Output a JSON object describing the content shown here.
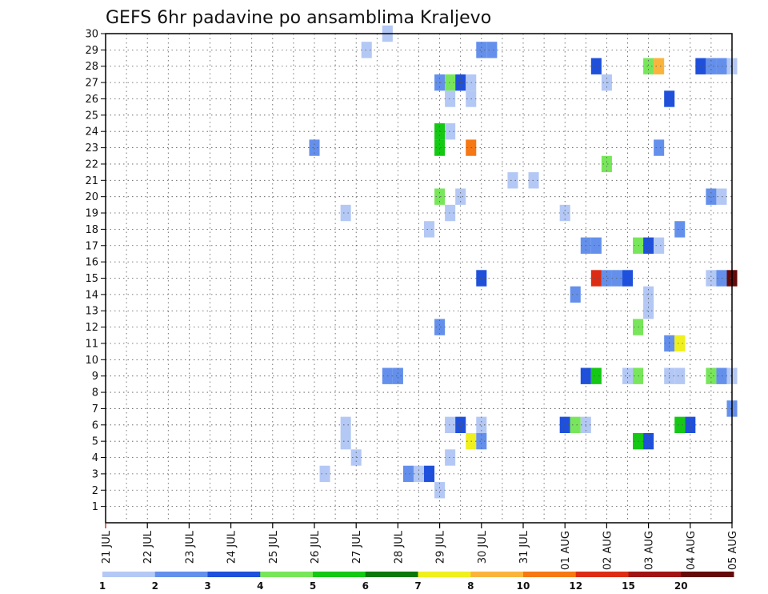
{
  "chart_data": {
    "type": "heatmap",
    "title": "GEFS 6hr padavine po ansamblima Kraljevo",
    "xlabel": "",
    "ylabel": "",
    "x_tick_labels": [
      "21 JUL",
      "22 JUL",
      "23 JUL",
      "24 JUL",
      "25 JUL",
      "26 JUL",
      "27 JUL",
      "28 JUL",
      "29 JUL",
      "30 JUL",
      "31 JUL",
      "01 AUG",
      "02 AUG",
      "03 AUG",
      "04 AUG",
      "05 AUG"
    ],
    "y_tick_labels": [
      "1",
      "2",
      "3",
      "4",
      "5",
      "6",
      "7",
      "8",
      "9",
      "10",
      "11",
      "12",
      "13",
      "14",
      "15",
      "16",
      "17",
      "18",
      "19",
      "20",
      "21",
      "22",
      "23",
      "24",
      "25",
      "26",
      "27",
      "28",
      "29",
      "30"
    ],
    "xlim_steps": [
      0,
      60
    ],
    "ylim": [
      0,
      30
    ],
    "grid": true,
    "colorbar": {
      "labels": [
        "1",
        "2",
        "3",
        "4",
        "5",
        "6",
        "7",
        "8",
        "10",
        "12",
        "15",
        "20"
      ],
      "colors": [
        "#b4c8f5",
        "#6490ec",
        "#1e50dc",
        "#78e65a",
        "#14c814",
        "#0a780a",
        "#f0f01e",
        "#fab43c",
        "#f57814",
        "#dc2d14",
        "#a01414",
        "#640a0a"
      ]
    },
    "points": [
      {
        "member": 30,
        "step": 27,
        "cls": 0
      },
      {
        "member": 29,
        "step": 25,
        "cls": 0
      },
      {
        "member": 29,
        "step": 36,
        "cls": 1
      },
      {
        "member": 29,
        "step": 37,
        "cls": 1
      },
      {
        "member": 28,
        "step": 47,
        "cls": 2
      },
      {
        "member": 28,
        "step": 52,
        "cls": 3
      },
      {
        "member": 28,
        "step": 53,
        "cls": 7
      },
      {
        "member": 28,
        "step": 57,
        "cls": 2
      },
      {
        "member": 28,
        "step": 58,
        "cls": 1
      },
      {
        "member": 28,
        "step": 59,
        "cls": 1
      },
      {
        "member": 28,
        "step": 60,
        "cls": 0
      },
      {
        "member": 27,
        "step": 32,
        "cls": 1
      },
      {
        "member": 27,
        "step": 33,
        "cls": 3
      },
      {
        "member": 27,
        "step": 34,
        "cls": 2
      },
      {
        "member": 27,
        "step": 35,
        "cls": 0
      },
      {
        "member": 27,
        "step": 48,
        "cls": 0
      },
      {
        "member": 26,
        "step": 33,
        "cls": 0
      },
      {
        "member": 26,
        "step": 35,
        "cls": 0
      },
      {
        "member": 26,
        "step": 54,
        "cls": 2
      },
      {
        "member": 24,
        "step": 32,
        "cls": 4
      },
      {
        "member": 24,
        "step": 33,
        "cls": 0
      },
      {
        "member": 23,
        "step": 20,
        "cls": 1
      },
      {
        "member": 23,
        "step": 32,
        "cls": 4
      },
      {
        "member": 23,
        "step": 35,
        "cls": 8
      },
      {
        "member": 23,
        "step": 53,
        "cls": 1
      },
      {
        "member": 22,
        "step": 48,
        "cls": 3
      },
      {
        "member": 21,
        "step": 39,
        "cls": 0
      },
      {
        "member": 21,
        "step": 41,
        "cls": 0
      },
      {
        "member": 20,
        "step": 32,
        "cls": 3
      },
      {
        "member": 20,
        "step": 34,
        "cls": 0
      },
      {
        "member": 20,
        "step": 58,
        "cls": 1
      },
      {
        "member": 20,
        "step": 59,
        "cls": 0
      },
      {
        "member": 19,
        "step": 23,
        "cls": 0
      },
      {
        "member": 19,
        "step": 33,
        "cls": 0
      },
      {
        "member": 19,
        "step": 44,
        "cls": 0
      },
      {
        "member": 18,
        "step": 31,
        "cls": 0
      },
      {
        "member": 18,
        "step": 55,
        "cls": 1
      },
      {
        "member": 17,
        "step": 46,
        "cls": 1
      },
      {
        "member": 17,
        "step": 47,
        "cls": 1
      },
      {
        "member": 17,
        "step": 51,
        "cls": 3
      },
      {
        "member": 17,
        "step": 52,
        "cls": 2
      },
      {
        "member": 17,
        "step": 53,
        "cls": 0
      },
      {
        "member": 15,
        "step": 36,
        "cls": 2
      },
      {
        "member": 15,
        "step": 47,
        "cls": 9
      },
      {
        "member": 15,
        "step": 48,
        "cls": 1
      },
      {
        "member": 15,
        "step": 49,
        "cls": 1
      },
      {
        "member": 15,
        "step": 50,
        "cls": 2
      },
      {
        "member": 15,
        "step": 58,
        "cls": 0
      },
      {
        "member": 15,
        "step": 59,
        "cls": 1
      },
      {
        "member": 15,
        "step": 60,
        "cls": 11
      },
      {
        "member": 14,
        "step": 45,
        "cls": 1
      },
      {
        "member": 14,
        "step": 52,
        "cls": 0
      },
      {
        "member": 13,
        "step": 52,
        "cls": 0
      },
      {
        "member": 12,
        "step": 32,
        "cls": 1
      },
      {
        "member": 12,
        "step": 51,
        "cls": 3
      },
      {
        "member": 11,
        "step": 54,
        "cls": 1
      },
      {
        "member": 11,
        "step": 55,
        "cls": 6
      },
      {
        "member": 9,
        "step": 27,
        "cls": 1
      },
      {
        "member": 9,
        "step": 28,
        "cls": 1
      },
      {
        "member": 9,
        "step": 46,
        "cls": 2
      },
      {
        "member": 9,
        "step": 47,
        "cls": 4
      },
      {
        "member": 9,
        "step": 50,
        "cls": 0
      },
      {
        "member": 9,
        "step": 51,
        "cls": 3
      },
      {
        "member": 9,
        "step": 54,
        "cls": 0
      },
      {
        "member": 9,
        "step": 55,
        "cls": 0
      },
      {
        "member": 9,
        "step": 58,
        "cls": 3
      },
      {
        "member": 9,
        "step": 59,
        "cls": 1
      },
      {
        "member": 9,
        "step": 60,
        "cls": 0
      },
      {
        "member": 7,
        "step": 60,
        "cls": 1
      },
      {
        "member": 6,
        "step": 23,
        "cls": 0
      },
      {
        "member": 6,
        "step": 33,
        "cls": 0
      },
      {
        "member": 6,
        "step": 34,
        "cls": 2
      },
      {
        "member": 6,
        "step": 36,
        "cls": 0
      },
      {
        "member": 6,
        "step": 44,
        "cls": 2
      },
      {
        "member": 6,
        "step": 45,
        "cls": 3
      },
      {
        "member": 6,
        "step": 46,
        "cls": 0
      },
      {
        "member": 6,
        "step": 55,
        "cls": 4
      },
      {
        "member": 6,
        "step": 56,
        "cls": 2
      },
      {
        "member": 5,
        "step": 23,
        "cls": 0
      },
      {
        "member": 5,
        "step": 35,
        "cls": 6
      },
      {
        "member": 5,
        "step": 36,
        "cls": 1
      },
      {
        "member": 5,
        "step": 51,
        "cls": 4
      },
      {
        "member": 5,
        "step": 52,
        "cls": 2
      },
      {
        "member": 4,
        "step": 24,
        "cls": 0
      },
      {
        "member": 4,
        "step": 33,
        "cls": 0
      },
      {
        "member": 3,
        "step": 21,
        "cls": 0
      },
      {
        "member": 3,
        "step": 29,
        "cls": 1
      },
      {
        "member": 3,
        "step": 30,
        "cls": 0
      },
      {
        "member": 3,
        "step": 31,
        "cls": 2
      },
      {
        "member": 2,
        "step": 32,
        "cls": 0
      }
    ]
  }
}
